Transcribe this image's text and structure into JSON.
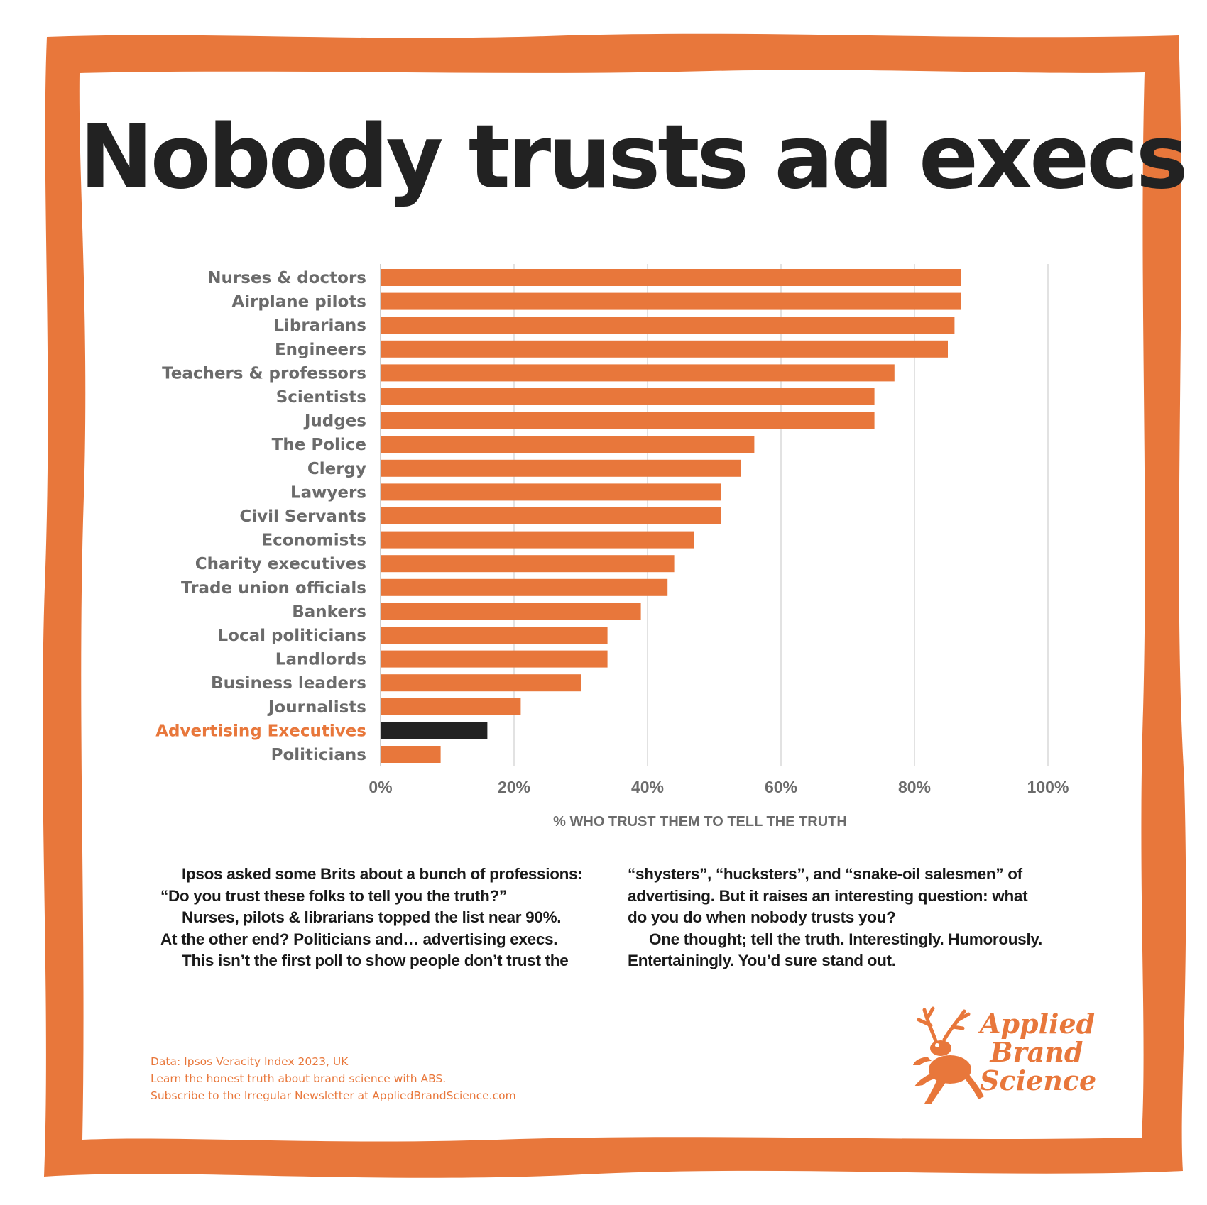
{
  "colors": {
    "frame": "#e8773b",
    "bar": "#e8773b",
    "highlight_bar": "#222222",
    "highlight_label": "#e8773b",
    "grid": "#d9d9d9",
    "label": "#6b6b6b"
  },
  "chart_data": {
    "type": "bar",
    "orientation": "horizontal",
    "title": "Nobody trusts ad execs",
    "xlabel": "% WHO TRUST THEM TO TELL THE TRUTH",
    "ylabel": "",
    "xlim": [
      0,
      100
    ],
    "xticks": [
      0,
      20,
      40,
      60,
      80,
      100
    ],
    "tick_labels": [
      "0%",
      "20%",
      "40%",
      "60%",
      "80%",
      "100%"
    ],
    "grid": "vertical",
    "highlight": "Advertising Executives",
    "categories": [
      "Nurses & doctors",
      "Airplane pilots",
      "Librarians",
      "Engineers",
      "Teachers & professors",
      "Scientists",
      "Judges",
      "The Police",
      "Clergy",
      "Lawyers",
      "Civil Servants",
      "Economists",
      "Charity executives",
      "Trade union officials",
      "Bankers",
      "Local politicians",
      "Landlords",
      "Business leaders",
      "Journalists",
      "Advertising Executives",
      "Politicians"
    ],
    "values": [
      87,
      87,
      86,
      85,
      77,
      74,
      74,
      56,
      54,
      51,
      51,
      47,
      44,
      43,
      39,
      34,
      34,
      30,
      21,
      16,
      9
    ]
  },
  "body_text": {
    "left": [
      "Ipsos asked some Brits about a bunch of professions:",
      "“Do you trust these folks to tell you the truth?”",
      "Nurses, pilots & librarians topped the list near 90%.",
      "At the other end? Politicians and… advertising execs.",
      "This isn’t the first poll to show people don’t trust the"
    ],
    "right": [
      "“shysters”, “hucksters”, and “snake-oil salesmen” of",
      "advertising. But it raises an interesting question: what",
      "do you do when nobody trusts you?",
      "One thought; tell the truth. Interestingly. Humorously.",
      "Entertainingly. You’d sure stand out."
    ]
  },
  "footer": {
    "line1": "Data: Ipsos Veracity Index 2023, UK",
    "line2": "Learn the honest truth about brand science with ABS.",
    "line3": "Subscribe to the Irregular Newsletter at AppliedBrandScience.com"
  },
  "logo": {
    "icon": "antlered-frog-icon",
    "line1": "Applied",
    "line2": "Brand",
    "line3": "Science"
  }
}
